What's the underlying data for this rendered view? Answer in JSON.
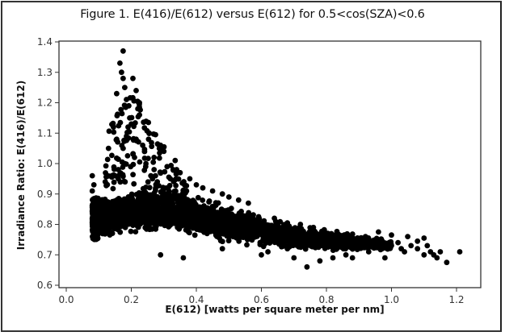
{
  "chart_data": {
    "type": "scatter",
    "title": "Figure 1.  E(416)/E(612) versus E(612) for 0.5<cos(SZA)<0.6",
    "xlabel": "E(612)  [watts per square meter per nm]",
    "ylabel": "Irradiance Ratio: E(416)/E(612)",
    "xlim": [
      -0.02,
      1.27
    ],
    "ylim": [
      0.6,
      1.4
    ],
    "xticks": [
      "0.0",
      "0.2",
      "0.4",
      "0.6",
      "0.8",
      "1.0",
      "1.2"
    ],
    "xtick_values": [
      0.0,
      0.2,
      0.4,
      0.6,
      0.8,
      1.0,
      1.2
    ],
    "yticks": [
      "0.6",
      "0.7",
      "0.8",
      "0.9",
      "1.0",
      "1.1",
      "1.2",
      "1.3",
      "1.4"
    ],
    "ytick_values": [
      0.6,
      0.7,
      0.8,
      0.9,
      1.0,
      1.1,
      1.2,
      1.3,
      1.4
    ],
    "grid": false,
    "legend": null,
    "marker": {
      "shape": "circle",
      "color": "#000000",
      "radius": 3.4
    },
    "band_envelope": {
      "description": "Dense band: approximate lower/upper ratio bounds vs E(612)",
      "x": [
        0.08,
        0.15,
        0.2,
        0.3,
        0.4,
        0.5,
        0.6,
        0.7,
        0.8,
        0.9,
        1.0
      ],
      "lower": [
        0.75,
        0.75,
        0.76,
        0.76,
        0.75,
        0.73,
        0.72,
        0.71,
        0.71,
        0.71,
        0.71
      ],
      "upper": [
        0.9,
        0.9,
        0.92,
        0.93,
        0.9,
        0.87,
        0.84,
        0.81,
        0.79,
        0.77,
        0.75
      ]
    },
    "peak_points": [
      [
        0.175,
        1.37
      ],
      [
        0.165,
        1.33
      ],
      [
        0.17,
        1.3
      ],
      [
        0.175,
        1.28
      ],
      [
        0.205,
        1.28
      ],
      [
        0.18,
        1.25
      ],
      [
        0.215,
        1.24
      ],
      [
        0.225,
        1.2
      ],
      [
        0.22,
        1.18
      ],
      [
        0.225,
        1.16
      ],
      [
        0.155,
        1.23
      ],
      [
        0.145,
        1.12
      ],
      [
        0.195,
        1.15
      ],
      [
        0.19,
        1.12
      ],
      [
        0.215,
        1.08
      ],
      [
        0.2,
        1.13
      ],
      [
        0.235,
        1.06
      ],
      [
        0.255,
        1.1
      ],
      [
        0.27,
        1.02
      ],
      [
        0.29,
        1.06
      ],
      [
        0.3,
        1.04
      ],
      [
        0.155,
        1.08
      ],
      [
        0.175,
        1.05
      ],
      [
        0.18,
        1.0
      ],
      [
        0.16,
        0.98
      ],
      [
        0.245,
        1.0
      ],
      [
        0.31,
        0.99
      ],
      [
        0.335,
        1.01
      ],
      [
        0.35,
        0.97
      ],
      [
        0.32,
        0.95
      ],
      [
        0.27,
        0.98
      ],
      [
        0.14,
        0.96
      ],
      [
        0.12,
        0.94
      ],
      [
        0.16,
        0.95
      ],
      [
        0.185,
        1.09
      ],
      [
        0.13,
        1.05
      ],
      [
        0.21,
        1.02
      ],
      [
        0.26,
        0.96
      ],
      [
        0.28,
        0.94
      ],
      [
        0.38,
        0.95
      ],
      [
        0.4,
        0.93
      ],
      [
        0.42,
        0.92
      ],
      [
        0.45,
        0.91
      ],
      [
        0.48,
        0.9
      ],
      [
        0.37,
        0.91
      ],
      [
        0.5,
        0.89
      ],
      [
        0.53,
        0.88
      ],
      [
        0.56,
        0.87
      ]
    ],
    "sparse_points": [
      [
        0.08,
        0.96
      ],
      [
        0.085,
        0.93
      ],
      [
        0.08,
        0.91
      ],
      [
        0.29,
        0.7
      ],
      [
        0.36,
        0.69
      ],
      [
        0.48,
        0.72
      ],
      [
        0.6,
        0.7
      ],
      [
        0.62,
        0.71
      ],
      [
        0.74,
        0.66
      ],
      [
        0.7,
        0.69
      ],
      [
        0.78,
        0.68
      ],
      [
        0.82,
        0.69
      ],
      [
        0.88,
        0.69
      ],
      [
        0.93,
        0.71
      ],
      [
        0.97,
        0.72
      ],
      [
        1.0,
        0.73
      ],
      [
        1.02,
        0.74
      ],
      [
        1.04,
        0.71
      ],
      [
        1.06,
        0.73
      ],
      [
        1.08,
        0.72
      ],
      [
        1.1,
        0.7
      ],
      [
        1.12,
        0.71
      ],
      [
        1.13,
        0.7
      ],
      [
        1.14,
        0.69
      ],
      [
        1.15,
        0.71
      ],
      [
        1.17,
        0.675
      ],
      [
        1.21,
        0.71
      ],
      [
        1.05,
        0.76
      ],
      [
        1.08,
        0.745
      ],
      [
        1.1,
        0.755
      ],
      [
        1.0,
        0.765
      ],
      [
        0.96,
        0.775
      ],
      [
        0.98,
        0.69
      ],
      [
        0.9,
        0.745
      ],
      [
        0.86,
        0.7
      ],
      [
        0.56,
        0.8
      ],
      [
        0.64,
        0.82
      ],
      [
        0.66,
        0.78
      ],
      [
        0.72,
        0.8
      ],
      [
        0.76,
        0.79
      ],
      [
        0.92,
        0.76
      ],
      [
        0.95,
        0.74
      ],
      [
        1.03,
        0.72
      ],
      [
        1.11,
        0.73
      ],
      [
        0.82,
        0.74
      ],
      [
        0.68,
        0.72
      ]
    ]
  }
}
